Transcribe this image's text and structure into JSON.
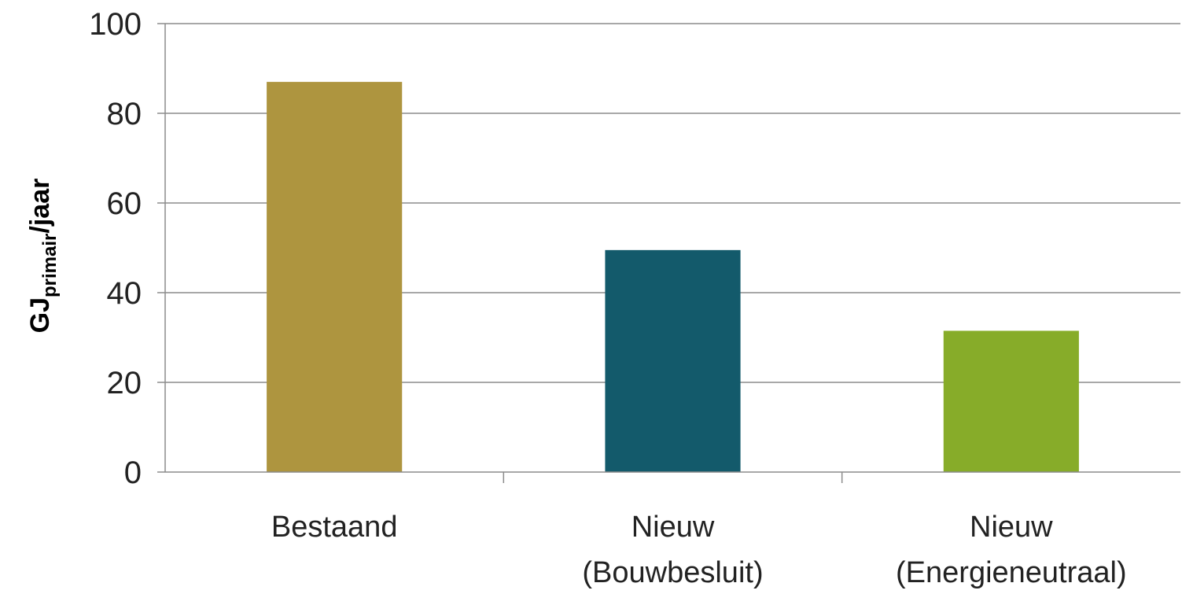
{
  "chart_data": {
    "type": "bar",
    "title": "",
    "xlabel": "",
    "ylabel": {
      "main": "GJ",
      "subscript": "primair",
      "suffix": "/jaar"
    },
    "ylim": [
      0,
      100
    ],
    "yticks": [
      0,
      20,
      40,
      60,
      80,
      100
    ],
    "grid": true,
    "legend": "none",
    "categories": [
      [
        "Bestaand"
      ],
      [
        "Nieuw",
        "(Bouwbesluit)"
      ],
      [
        "Nieuw",
        "(Energieneutraal)"
      ]
    ],
    "values": [
      87,
      49.5,
      31.5
    ],
    "colors": [
      "#AE953F",
      "#135A6B",
      "#87AC29"
    ]
  }
}
